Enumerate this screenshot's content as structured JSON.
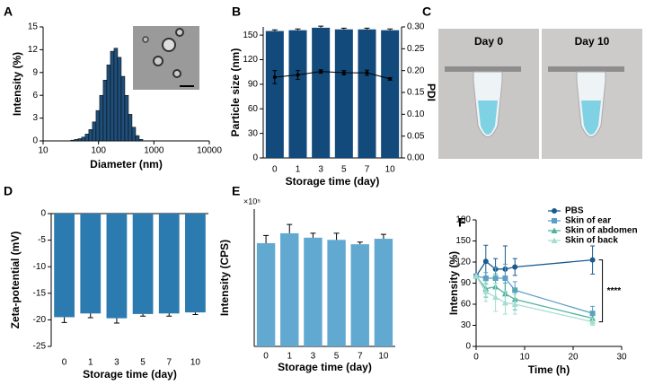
{
  "chart_data": [
    {
      "type": "histogram",
      "panel": "A",
      "xlabel": "Diameter (nm)",
      "ylabel": "Intensity (%)",
      "bins": [
        31.6,
        36.7,
        42.7,
        49.6,
        57.5,
        66.8,
        77.6,
        90.2,
        104.7,
        121.6,
        141.3,
        164.1,
        190.5,
        221.3,
        257.0,
        298.5,
        346.7,
        402.7,
        467.7,
        543.3,
        631.0
      ],
      "values": [
        0.1,
        0.2,
        0.3,
        0.5,
        0.9,
        1.5,
        2.5,
        4,
        6,
        8,
        10,
        11.8,
        12.2,
        11,
        8.5,
        6,
        3.5,
        1.8,
        0.7,
        0.2
      ],
      "color": "#1f4e79",
      "xlog": true,
      "xlim": [
        10,
        10000
      ],
      "xticks": [
        10,
        100,
        1000,
        10000
      ],
      "ylim": [
        0,
        15
      ],
      "yticks": [
        0,
        3,
        6,
        9,
        12,
        15
      ]
    },
    {
      "type": "bar",
      "panel": "B",
      "xlabel": "Storage time (day)",
      "ylabel": "Particle size (nm)",
      "y2label": "PDI",
      "categories": [
        "0",
        "1",
        "3",
        "5",
        "7",
        "10"
      ],
      "series": [
        {
          "type": "bar",
          "color": "#124a7c",
          "values": [
            155,
            156,
            159,
            157,
            157,
            156
          ],
          "errors": [
            1.5,
            1.5,
            2,
            1.5,
            1.5,
            1.5
          ]
        },
        {
          "type": "line",
          "axis": "y2",
          "color": "#000000",
          "values": [
            0.185,
            0.19,
            0.198,
            0.195,
            0.195,
            0.181
          ],
          "errors": [
            0.015,
            0.01,
            0.004,
            0.005,
            0.006,
            0.003
          ]
        }
      ],
      "ylim": [
        0,
        160
      ],
      "yticks": [
        0,
        30,
        60,
        90,
        120,
        150
      ],
      "y2lim": [
        0,
        0.3
      ],
      "y2ticks": [
        {
          "value": 0,
          "label": "0.00"
        },
        {
          "value": 0.05,
          "label": "0.05"
        },
        {
          "value": 0.1,
          "label": "0.10"
        },
        {
          "value": 0.15,
          "label": "0.15"
        },
        {
          "value": 0.2,
          "label": "0.20"
        },
        {
          "value": 0.25,
          "label": "0.25"
        },
        {
          "value": 0.3,
          "label": "0.30"
        }
      ]
    },
    {
      "type": "bar",
      "panel": "D",
      "xlabel": "Storage time (day)",
      "ylabel": "Zeta-potential (mV)",
      "categories": [
        "0",
        "1",
        "3",
        "5",
        "7",
        "10"
      ],
      "series": [
        {
          "type": "bar",
          "color": "#2c7bb0",
          "values": [
            -19.5,
            -18.8,
            -19.7,
            -18.9,
            -18.8,
            -18.6
          ],
          "errors": [
            1.0,
            0.8,
            0.9,
            0.4,
            0.5,
            0.4
          ]
        }
      ],
      "ylim": [
        -25,
        0
      ],
      "yticks": [
        -25,
        -20,
        -15,
        -10,
        -5,
        0
      ]
    },
    {
      "type": "bar",
      "panel": "E",
      "xlabel": "Storage time (day)",
      "ylabel": "Intensity (CPS)",
      "y_scale_label": "×10⁵",
      "categories": [
        "0",
        "1",
        "3",
        "5",
        "7",
        "10"
      ],
      "series": [
        {
          "type": "bar",
          "color": "#62a9d1",
          "values": [
            9.4,
            10.3,
            9.9,
            9.7,
            9.3,
            9.8
          ],
          "errors": [
            0.7,
            0.8,
            0.4,
            0.6,
            0.2,
            0.4
          ]
        }
      ],
      "ylim": [
        0,
        12.5
      ]
    },
    {
      "type": "line",
      "panel": "F",
      "xlabel": "Time (h)",
      "ylabel": "Intensity (%)",
      "legend": "upper right",
      "annotation": "****",
      "x": [
        0,
        2,
        4,
        6,
        8,
        24
      ],
      "series": [
        {
          "name": "PBS",
          "color": "#1b5a8e",
          "marker": "circle",
          "values": [
            100,
            121,
            110,
            110,
            113,
            123
          ],
          "errors": [
            0,
            23,
            15,
            33,
            12,
            20
          ]
        },
        {
          "name": "Skin of ear",
          "color": "#5b9fc4",
          "marker": "square",
          "values": [
            100,
            97,
            97,
            97,
            80,
            47
          ],
          "errors": [
            0,
            8,
            15,
            20,
            12,
            10
          ]
        },
        {
          "name": "Skin of abdomen",
          "color": "#4fb39c",
          "marker": "triangle",
          "values": [
            100,
            82,
            85,
            75,
            67,
            40
          ],
          "errors": [
            0,
            12,
            18,
            15,
            15,
            6
          ]
        },
        {
          "name": "Skin of back",
          "color": "#a6ddd2",
          "marker": "triangle",
          "values": [
            100,
            78,
            70,
            62,
            60,
            35
          ],
          "errors": [
            0,
            14,
            20,
            16,
            14,
            5
          ]
        }
      ],
      "xlim": [
        0,
        30
      ],
      "xticks": [
        0,
        10,
        20,
        30
      ],
      "ylim": [
        0,
        180
      ],
      "yticks": [
        0,
        30,
        60,
        90,
        120,
        150,
        180
      ]
    }
  ],
  "photo": {
    "panel": "C",
    "labels": [
      "Day 0",
      "Day 10"
    ]
  }
}
